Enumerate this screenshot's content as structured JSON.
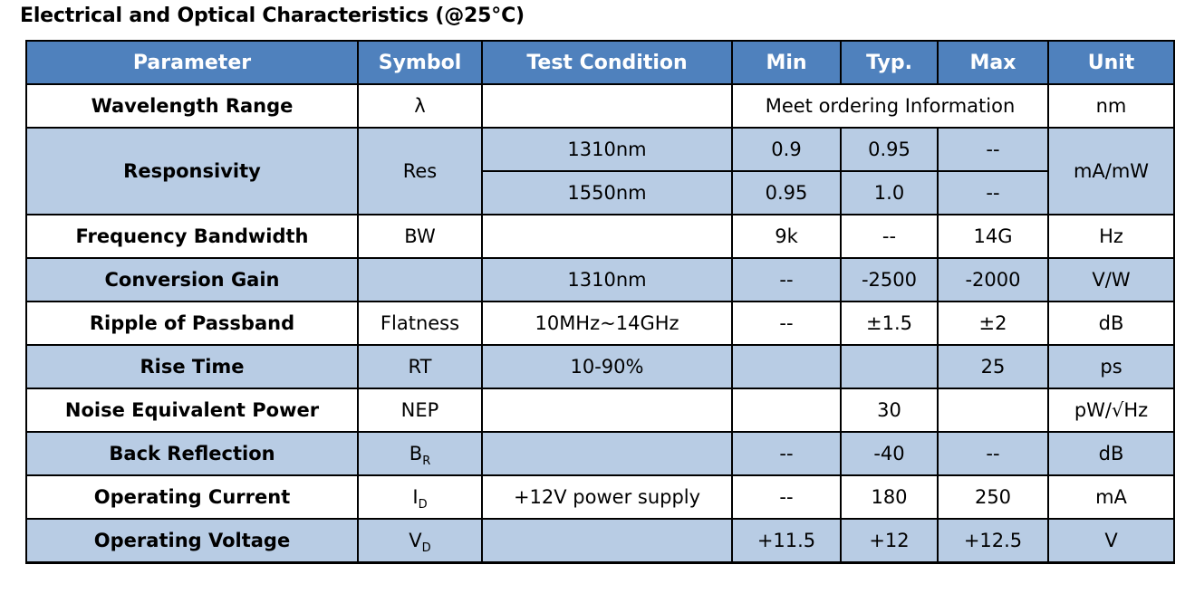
{
  "title": "Electrical and Optical Characteristics (@25°C)",
  "headers": {
    "parameter": "Parameter",
    "symbol": "Symbol",
    "test_condition": "Test Condition",
    "min": "Min",
    "typ": "Typ.",
    "max": "Max",
    "unit": "Unit"
  },
  "rows": {
    "wavelength": {
      "parameter": "Wavelength Range",
      "symbol": "λ",
      "condition": "",
      "value_merged": "Meet ordering Information",
      "unit": "nm"
    },
    "responsivity": {
      "parameter": "Responsivity",
      "symbol": "Res",
      "unit": "mA/mW",
      "sub": [
        {
          "condition": "1310nm",
          "min": "0.9",
          "typ": "0.95",
          "max": "--"
        },
        {
          "condition": "1550nm",
          "min": "0.95",
          "typ": "1.0",
          "max": "--"
        }
      ]
    },
    "bandwidth": {
      "parameter": "Frequency Bandwidth",
      "symbol": "BW",
      "condition": "",
      "min": "9k",
      "typ": "--",
      "max": "14G",
      "unit": "Hz"
    },
    "gain": {
      "parameter": "Conversion Gain",
      "symbol": "",
      "condition": "1310nm",
      "min": "--",
      "typ": "-2500",
      "max": "-2000",
      "unit": "V/W"
    },
    "ripple": {
      "parameter": "Ripple of Passband",
      "symbol": "Flatness",
      "condition": "10MHz~14GHz",
      "min": "--",
      "typ": "±1.5",
      "max": "±2",
      "unit": "dB"
    },
    "rise": {
      "parameter": "Rise Time",
      "symbol": "RT",
      "condition": "10-90%",
      "min": "",
      "typ": "",
      "max": "25",
      "unit": "ps"
    },
    "nep": {
      "parameter": "Noise Equivalent Power",
      "symbol": "NEP",
      "condition": "",
      "min": "",
      "typ": "30",
      "max": "",
      "unit": "pW/√Hz"
    },
    "back_reflection": {
      "parameter": "Back Reflection",
      "symbol_main": "B",
      "symbol_sub": "R",
      "condition": "",
      "min": "--",
      "typ": "-40",
      "max": "--",
      "unit": "dB"
    },
    "current": {
      "parameter": "Operating Current",
      "symbol_main": "I",
      "symbol_sub": "D",
      "condition": "+12V power supply",
      "min": "--",
      "typ": "180",
      "max": "250",
      "unit": "mA"
    },
    "voltage": {
      "parameter": "Operating Voltage",
      "symbol_main": "V",
      "symbol_sub": "D",
      "condition": "",
      "min": "+11.5",
      "typ": "+12",
      "max": "+12.5",
      "unit": "V"
    }
  }
}
